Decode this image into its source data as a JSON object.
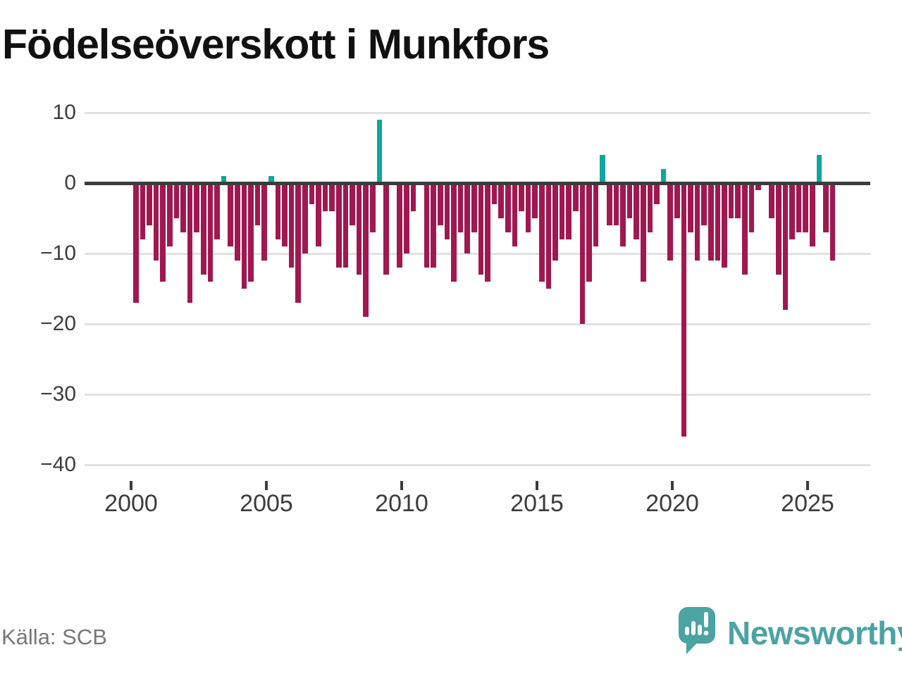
{
  "title": "Födelseöverskott i Munkfors",
  "source": {
    "text": "Källa: SCB"
  },
  "brand": {
    "name": "Newsworthy",
    "icon": "newsworthy-speech-bubble-chart-icon"
  },
  "colors": {
    "negative_bar": "#A0184F",
    "positive_bar": "#10A69E",
    "zero_axis": "#3C3C3C",
    "gridline": "#E1E1E1",
    "tick_text": "#3C3C3C",
    "title_text": "#111111",
    "source_text": "#777777",
    "brand_teal": "#4BA3A2"
  },
  "chart_data": {
    "type": "bar",
    "title": "Födelseöverskott i Munkfors",
    "frequency": "quarterly",
    "start_year": 2000,
    "start_quarter": "Q1",
    "end_year": 2025,
    "end_quarter": "Q4",
    "xlabel": "",
    "ylabel": "",
    "ylim": [
      -40,
      10
    ],
    "grid": "horizontal",
    "legend": "none",
    "y_ticks": [
      10,
      0,
      -10,
      -20,
      -30,
      -40
    ],
    "y_tick_labels": [
      "10",
      "0",
      "−10",
      "−20",
      "−30",
      "−40"
    ],
    "x_tick_labels": [
      "2000",
      "2005",
      "2010",
      "2015",
      "2020",
      "2025"
    ],
    "values": [
      -17,
      -8,
      -6,
      -11,
      -14,
      -9,
      -5,
      -7,
      -17,
      -7,
      -13,
      -14,
      -8,
      1,
      -9,
      -11,
      -15,
      -14,
      -6,
      -11,
      1,
      -8,
      -9,
      -12,
      -17,
      -10,
      -3,
      -9,
      -4,
      -4,
      -12,
      -12,
      -6,
      -13,
      -19,
      -7,
      9,
      -13,
      0,
      -12,
      -10,
      -4,
      0,
      -12,
      -12,
      -6,
      -8,
      -14,
      -7,
      -10,
      -7,
      -13,
      -14,
      -3,
      -5,
      -7,
      -9,
      -4,
      -7,
      -5,
      -14,
      -15,
      -11,
      -8,
      -8,
      -4,
      -20,
      -14,
      -9,
      4,
      -6,
      -6,
      -9,
      -5,
      -8,
      -14,
      -7,
      -3,
      2,
      -11,
      -5,
      -36,
      -7,
      -11,
      -6,
      -11,
      -11,
      -12,
      -5,
      -5,
      -13,
      -7,
      -1,
      0,
      -5,
      -13,
      -18,
      -8,
      -7,
      -7,
      -9,
      4,
      -7,
      -11
    ]
  }
}
